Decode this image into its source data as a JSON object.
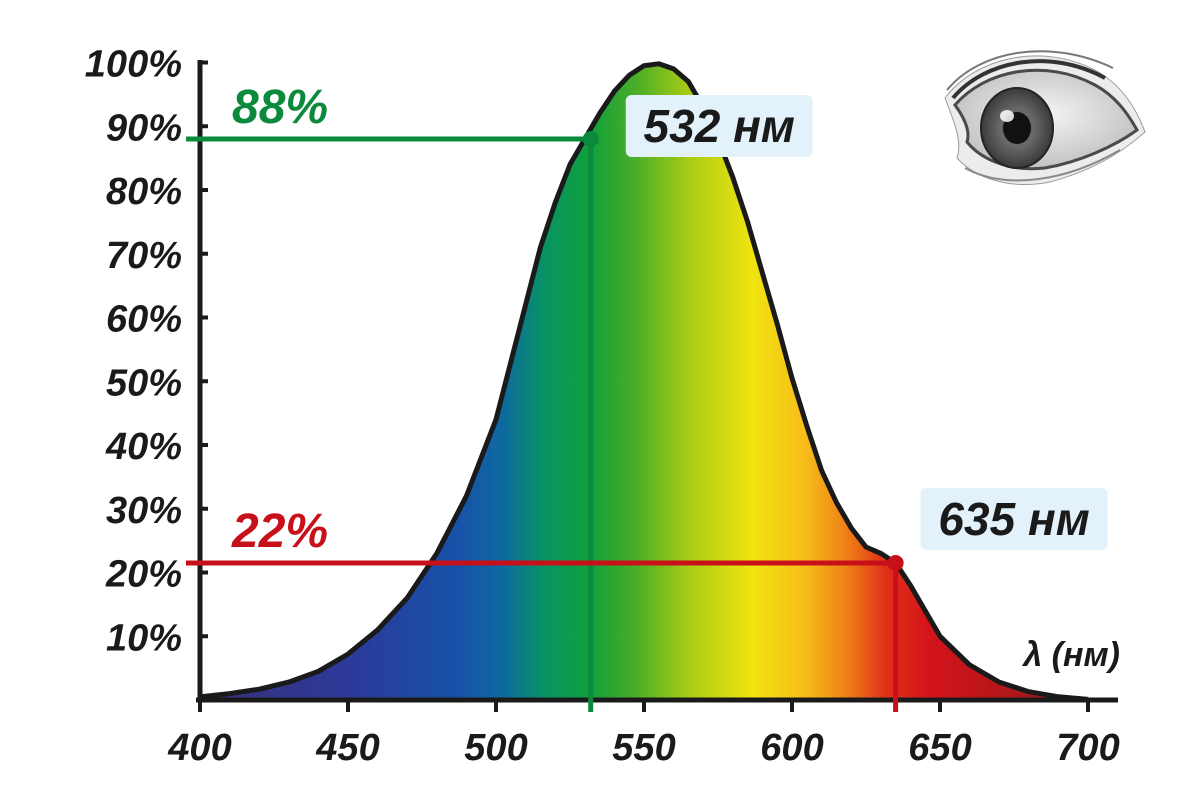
{
  "chart_data": {
    "type": "area",
    "title": "",
    "xlabel": "λ (нм)",
    "ylabel": "",
    "xlim": [
      400,
      710
    ],
    "ylim": [
      0,
      100
    ],
    "x_ticks": [
      "400",
      "450",
      "500",
      "550",
      "600",
      "650",
      "700"
    ],
    "y_ticks": [
      "10%",
      "20%",
      "30%",
      "40%",
      "50%",
      "60%",
      "70%",
      "80%",
      "90%",
      "100%"
    ],
    "curve": {
      "x": [
        400,
        410,
        420,
        430,
        440,
        450,
        460,
        470,
        480,
        490,
        500,
        505,
        510,
        515,
        520,
        525,
        530,
        535,
        540,
        545,
        550,
        555,
        560,
        565,
        570,
        575,
        580,
        585,
        590,
        595,
        600,
        605,
        610,
        615,
        620,
        625,
        630,
        635,
        640,
        645,
        650,
        660,
        670,
        680,
        690,
        700
      ],
      "y": [
        0.5,
        1.0,
        1.7,
        2.8,
        4.5,
        7.2,
        11,
        16,
        23,
        32,
        44,
        53,
        62,
        71,
        78,
        84,
        88,
        92,
        95.5,
        98,
        99.5,
        99.8,
        99,
        97,
        93,
        88,
        82,
        75,
        67,
        59,
        50.5,
        43,
        36,
        31,
        27,
        24,
        23,
        21.5,
        18,
        14,
        10,
        5.5,
        2.8,
        1.3,
        0.5,
        0.1
      ]
    },
    "annotations": [
      {
        "label": "532 нм",
        "x": 532,
        "y": 88,
        "percent_label": "88%",
        "color": "#0b8a3c"
      },
      {
        "label": "635 нм",
        "x": 635,
        "y": 21.5,
        "percent_label": "22%",
        "color": "#c8101a"
      }
    ],
    "grid": false,
    "legend": "none"
  },
  "colors": {
    "axis": "#1a1a1a",
    "label_box": "#e3f1fb",
    "green_line": "#0b8a3c",
    "red_line": "#c8101a"
  },
  "icons": {
    "eye": "eye-icon"
  }
}
